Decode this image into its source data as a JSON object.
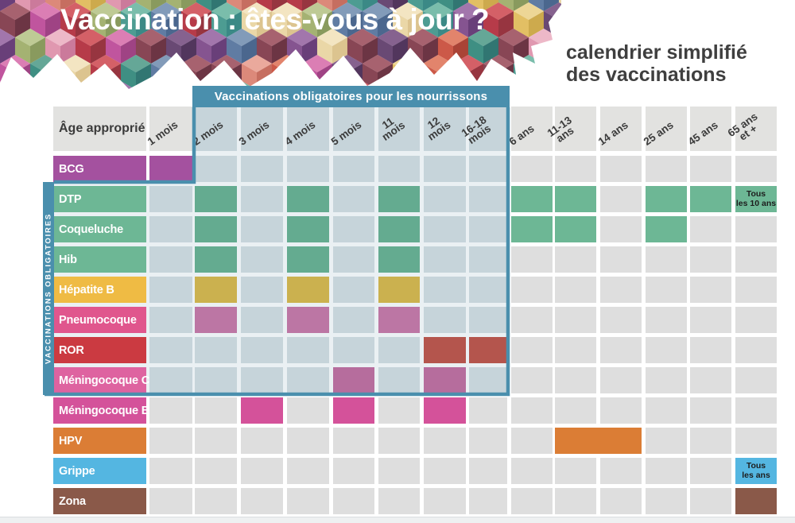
{
  "header": {
    "title": "Vaccination : êtes-vous à jour ?",
    "subtitle": "calendrier simplifié\ndes vaccinations"
  },
  "banner": {
    "label": "Vaccinations obligatoires pour les nourrissons"
  },
  "sidebar_label": "VACCINATIONS OBLIGATOIRES",
  "table": {
    "corner_label": "Âge approprié",
    "age_columns": [
      "1 mois",
      "2 mois",
      "3 mois",
      "4 mois",
      "5 mois",
      "11 mois",
      "12 mois",
      "16-18\nmois",
      "6 ans",
      "11-13\nans",
      "14 ans",
      "25 ans",
      "45 ans",
      "65 ans\net +"
    ],
    "rows": [
      {
        "name": "BCG",
        "color": "#a4519f",
        "fills": [
          {
            "col": "1 mois",
            "color": "#a4519f"
          }
        ]
      },
      {
        "name": "DTP",
        "color": "#6db795",
        "fills": [
          {
            "col": "2 mois",
            "color": "#64ab90"
          },
          {
            "col": "4 mois",
            "color": "#64ab90"
          },
          {
            "col": "11 mois",
            "color": "#64ab90"
          },
          {
            "col": "6 ans",
            "color": "#6db795"
          },
          {
            "col": "11-13 ans",
            "color": "#6db795"
          },
          {
            "col": "25 ans",
            "color": "#6db795"
          },
          {
            "col": "45 ans",
            "color": "#6db795"
          },
          {
            "col": "65 ans et +",
            "color": "#6db795",
            "note": "Tous\nles 10 ans"
          }
        ]
      },
      {
        "name": "Coqueluche",
        "color": "#6db795",
        "fills": [
          {
            "col": "2 mois",
            "color": "#64ab90"
          },
          {
            "col": "4 mois",
            "color": "#64ab90"
          },
          {
            "col": "11 mois",
            "color": "#64ab90"
          },
          {
            "col": "6 ans",
            "color": "#6db795"
          },
          {
            "col": "11-13 ans",
            "color": "#6db795"
          },
          {
            "col": "25 ans",
            "color": "#6db795"
          }
        ]
      },
      {
        "name": "Hib",
        "color": "#6db795",
        "fills": [
          {
            "col": "2 mois",
            "color": "#64ab90"
          },
          {
            "col": "4 mois",
            "color": "#64ab90"
          },
          {
            "col": "11 mois",
            "color": "#64ab90"
          }
        ]
      },
      {
        "name": "Hépatite B",
        "color": "#efbb44",
        "fills": [
          {
            "col": "2 mois",
            "color": "#cbb14f"
          },
          {
            "col": "4 mois",
            "color": "#cbb14f"
          },
          {
            "col": "11 mois",
            "color": "#cbb14f"
          }
        ]
      },
      {
        "name": "Pneumocoque",
        "color": "#e0568d",
        "fills": [
          {
            "col": "2 mois",
            "color": "#bc76a4"
          },
          {
            "col": "4 mois",
            "color": "#bc76a4"
          },
          {
            "col": "11 mois",
            "color": "#bc76a4"
          }
        ]
      },
      {
        "name": "ROR",
        "color": "#cb3a41",
        "fills": [
          {
            "col": "12 mois",
            "color": "#b4554d"
          },
          {
            "col": "16-18 mois",
            "color": "#b4554d"
          }
        ]
      },
      {
        "name": "Méningocoque C",
        "color": "#de63a0",
        "fills": [
          {
            "col": "5 mois",
            "color": "#b66d9d"
          },
          {
            "col": "12 mois",
            "color": "#b66d9d"
          }
        ]
      },
      {
        "name": "Méningocoque B",
        "color": "#d4529a",
        "fills": [
          {
            "col": "3 mois",
            "color": "#d4529a"
          },
          {
            "col": "5 mois",
            "color": "#d4529a"
          },
          {
            "col": "12 mois",
            "color": "#d4529a"
          }
        ]
      },
      {
        "name": "HPV",
        "color": "#db7d35",
        "fills": [
          {
            "col": "11-13 ans",
            "span": 2,
            "color": "#db7d35"
          }
        ]
      },
      {
        "name": "Grippe",
        "color": "#54b6e1",
        "fills": [
          {
            "col": "65 ans et +",
            "color": "#54b6e1",
            "note": "Tous\nles ans"
          }
        ]
      },
      {
        "name": "Zona",
        "color": "#8a5949",
        "fills": [
          {
            "col": "65 ans et +",
            "color": "#8a5949"
          }
        ]
      }
    ]
  },
  "colors": {
    "accent_teal": "#4a8fad",
    "cell_default": "#dedede",
    "header_cell": "#e2e2e0",
    "cell_in_region": "#c6d4da",
    "region_backdrop": "#eaf0f3",
    "bottom_strip": "#eef0f1",
    "text_dark": "#3b3b3b"
  },
  "decor": {
    "mosaic_palette": [
      [
        "#6fb7a4",
        "#3e9489",
        "#2a7f7c"
      ],
      [
        "#58a08e",
        "#2f8578",
        "#1f6a66"
      ],
      [
        "#d0535a",
        "#b02a3a",
        "#8e2430"
      ],
      [
        "#e07a5f",
        "#c84b38",
        "#a33325"
      ],
      [
        "#9a6aa5",
        "#7b4587",
        "#5c2f6e"
      ],
      [
        "#7c5585",
        "#5c3a68",
        "#43254f"
      ],
      [
        "#d873ae",
        "#bb4796",
        "#97337a"
      ],
      [
        "#ecb2c3",
        "#dd8fa9",
        "#c76f92"
      ],
      [
        "#a05563",
        "#7e3647",
        "#5f2434"
      ],
      [
        "#ecd28d",
        "#dfba57",
        "#c9a33e"
      ],
      [
        "#f2e3bd",
        "#e8d49f",
        "#d9bf85"
      ],
      [
        "#7792b3",
        "#52719b",
        "#3c5a84"
      ],
      [
        "#b9c58c",
        "#9cab66",
        "#7f9150"
      ],
      [
        "#e8a294",
        "#d97f6f",
        "#c16252"
      ]
    ]
  }
}
